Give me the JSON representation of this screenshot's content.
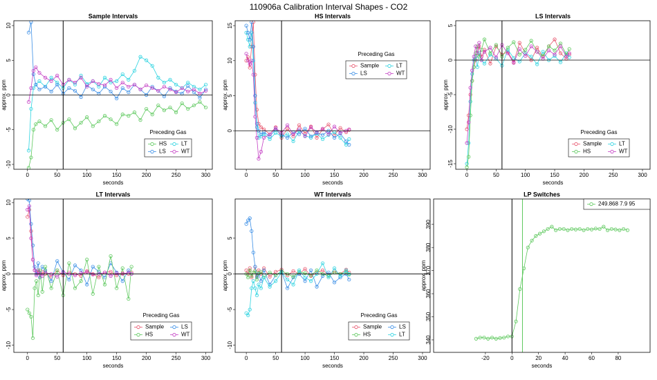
{
  "title": "110906a   Calibration Interval Shapes - CO2",
  "chart_data": [
    {
      "type": "line",
      "title": "Sample Intervals",
      "xlabel": "seconds",
      "ylabel": "approx. ppm",
      "x": [
        2,
        6,
        10,
        14,
        20,
        30,
        40,
        50,
        60,
        70,
        80,
        90,
        100,
        110,
        120,
        130,
        140,
        150,
        160,
        170,
        180,
        190,
        200,
        210,
        220,
        230,
        240,
        250,
        260,
        270,
        280,
        290,
        300
      ],
      "series": [
        {
          "name": "HS",
          "color": "#5CC85C",
          "values": [
            -10.5,
            -9,
            -5,
            -4.2,
            -3.8,
            -4.5,
            -3.6,
            -5,
            -4,
            -3.5,
            -4.8,
            -4,
            -3.2,
            -4.5,
            -3.8,
            -3,
            -3.5,
            -4.2,
            -2.8,
            -3,
            -2.5,
            -3.6,
            -2,
            -2.8,
            -1.5,
            -2.2,
            -1.8,
            -2.5,
            -1.2,
            -2,
            -1.5,
            -1,
            -1.8
          ]
        },
        {
          "name": "LT",
          "color": "#2CD3E0",
          "values": [
            -8,
            -2,
            1,
            1.5,
            2,
            1.2,
            2.5,
            1.8,
            1,
            2.2,
            1.5,
            2.8,
            1.6,
            2,
            1.2,
            2.5,
            1.8,
            2,
            3,
            2.2,
            3.5,
            5.5,
            5,
            4.2,
            2.5,
            1.8,
            2.2,
            1.5,
            1,
            1.8,
            1.2,
            0.8,
            1.5
          ]
        },
        {
          "name": "LS",
          "color": "#3A8EE6",
          "values": [
            9,
            10.5,
            3,
            1.5,
            0.8,
            1.2,
            0.5,
            1.5,
            0.2,
            1,
            0.6,
            -0.3,
            1.4,
            0.8,
            0.2,
            1.2,
            0.5,
            -0.5,
            1,
            0.4,
            1.5,
            0.8,
            0,
            1.2,
            0.6,
            -0.2,
            1,
            0.5,
            0.2,
            1.3,
            0.4,
            -0.4,
            0.8
          ]
        },
        {
          "name": "WT",
          "color": "#C43FC4",
          "values": [
            -1,
            1,
            3.5,
            4,
            3.2,
            2.5,
            2,
            2.8,
            1.5,
            2.2,
            1.8,
            2.5,
            1.2,
            2,
            1.6,
            1.4,
            2.2,
            1,
            1.8,
            1.2,
            1.5,
            0.8,
            1.4,
            1,
            0.6,
            1.2,
            0.8,
            0.4,
            1,
            0.5,
            0.8,
            0.2,
            0.6
          ]
        }
      ],
      "xlim": [
        -23,
        311
      ],
      "xticks": [
        0,
        50,
        100,
        150,
        200,
        250,
        300
      ],
      "ylim": [
        -10.7,
        10.7
      ],
      "yticks": [
        -10,
        -5,
        0,
        5,
        10
      ],
      "vlines": [
        {
          "value": 60,
          "color": "#000000"
        }
      ],
      "hlines": [
        0
      ],
      "legend_title": "Preceding Gas",
      "legend": "bottomright"
    },
    {
      "type": "line",
      "title": "HS Intervals",
      "xlabel": "seconds",
      "ylabel": "approx. ppm",
      "x": [
        0,
        3,
        6,
        9,
        12,
        15,
        18,
        21,
        25,
        30,
        40,
        50,
        60,
        70,
        80,
        90,
        100,
        110,
        120,
        130,
        140,
        150,
        160,
        170,
        175
      ],
      "series": [
        {
          "name": "Sample",
          "color": "#E7546C",
          "values": [
            10,
            10.5,
            9,
            12,
            15.5,
            8,
            3,
            1,
            0.5,
            0.2,
            -0.5,
            0.5,
            -1,
            0.3,
            -0.8,
            0.8,
            -0.4,
            0.6,
            -1,
            0.2,
            0.9,
            -0.6,
            0.4,
            -0.2,
            0.1
          ]
        },
        {
          "name": "LT",
          "color": "#2CD3E0",
          "values": [
            14,
            13,
            12,
            14,
            10,
            4,
            0.5,
            -1,
            -0.8,
            -0.5,
            -1.2,
            -0.3,
            -0.8,
            -0.5,
            -1.5,
            0,
            -0.7,
            -1,
            -0.4,
            -1.2,
            -0.6,
            -0.2,
            -1,
            -2,
            -1.2
          ]
        },
        {
          "name": "LS",
          "color": "#3A8EE6",
          "values": [
            15,
            14,
            13,
            15.5,
            12,
            5,
            1,
            0,
            -0.5,
            -0.2,
            -0.8,
            0.2,
            -0.6,
            -1,
            -0.2,
            -0.5,
            0.3,
            -0.8,
            -0.3,
            -0.6,
            0,
            -1,
            -0.4,
            -1.5,
            -2
          ]
        },
        {
          "name": "WT",
          "color": "#C43FC4",
          "values": [
            11,
            10,
            9.5,
            10,
            8,
            2,
            -1,
            -4,
            -3,
            -1,
            -0.5,
            0.4,
            -0.3,
            0.8,
            -0.5,
            0.2,
            -0.8,
            0.5,
            -0.2,
            0.3,
            -0.5,
            0.6,
            -0.3,
            0,
            0.2
          ]
        }
      ],
      "xlim": [
        -19,
        313
      ],
      "xticks": [
        0,
        50,
        100,
        150,
        200,
        250,
        300
      ],
      "ylim": [
        -5.5,
        15.7
      ],
      "yticks": [
        0,
        5,
        10,
        15
      ],
      "vlines": [
        {
          "value": 60,
          "color": "#000000"
        }
      ],
      "hlines": [
        0
      ],
      "legend_title": "Preceding Gas",
      "legend": "topright"
    },
    {
      "type": "line",
      "title": "LS Intervals",
      "xlabel": "seconds",
      "ylabel": "approx. ppm",
      "x": [
        0,
        3,
        6,
        9,
        12,
        15,
        18,
        21,
        25,
        30,
        40,
        50,
        60,
        70,
        80,
        90,
        100,
        110,
        120,
        130,
        140,
        150,
        160,
        170,
        175
      ],
      "series": [
        {
          "name": "Sample",
          "color": "#E7546C",
          "values": [
            -10,
            -8,
            -5,
            -3,
            -1,
            0,
            1,
            2,
            0.5,
            1.5,
            -0.5,
            2,
            0.8,
            1.2,
            -0.3,
            2.5,
            1,
            0,
            1.8,
            0.5,
            2,
            3,
            1,
            0.2,
            0.8
          ]
        },
        {
          "name": "LT",
          "color": "#2CD3E0",
          "values": [
            -15,
            -12,
            -6,
            -2,
            0,
            0.5,
            -1,
            1,
            0,
            -0.5,
            0.8,
            0.2,
            -0.8,
            1.5,
            0.3,
            -0.2,
            1,
            0.5,
            -0.6,
            1.2,
            0,
            0.6,
            -0.3,
            1,
            0.4
          ]
        },
        {
          "name": "HS",
          "color": "#5CC85C",
          "values": [
            -15.5,
            -14,
            -8,
            -3,
            -1,
            1,
            2,
            0.5,
            1.5,
            3,
            1,
            2.2,
            0.5,
            1.8,
            2.6,
            0.8,
            1.5,
            2.8,
            1.2,
            0.6,
            2,
            1.4,
            2.4,
            0.8,
            1.6
          ]
        },
        {
          "name": "WT",
          "color": "#C43FC4",
          "values": [
            -12,
            -9,
            -4,
            -1.5,
            0.5,
            2,
            1,
            2.5,
            0,
            1.2,
            1.8,
            0.4,
            2.2,
            1,
            -0.4,
            1.6,
            0.6,
            2,
            1.2,
            0.2,
            1.4,
            0.8,
            2,
            0.5,
            1
          ]
        }
      ],
      "xlim": [
        -19,
        313
      ],
      "xticks": [
        0,
        50,
        100,
        150,
        200,
        250,
        300
      ],
      "ylim": [
        -15.8,
        5.7
      ],
      "yticks": [
        -15,
        -10,
        -5,
        0,
        5
      ],
      "vlines": [
        {
          "value": 60,
          "color": "#000000"
        }
      ],
      "hlines": [
        0
      ],
      "legend_title": "Preceding Gas",
      "legend": "bottomright"
    },
    {
      "type": "line",
      "title": "LT Intervals",
      "xlabel": "seconds",
      "ylabel": "approx. ppm",
      "x": [
        0,
        3,
        6,
        9,
        12,
        15,
        18,
        21,
        25,
        30,
        40,
        50,
        60,
        70,
        80,
        90,
        100,
        110,
        120,
        130,
        140,
        150,
        160,
        170,
        175
      ],
      "series": [
        {
          "name": "Sample",
          "color": "#E7546C",
          "values": [
            8,
            9,
            6,
            2,
            0.5,
            0,
            0.5,
            -0.5,
            0.3,
            0,
            -0.4,
            0.5,
            -0.2,
            0.2,
            0,
            -0.3,
            0.4,
            0,
            -0.5,
            0.2,
            0.3,
            -0.2,
            0.1,
            0,
            0.2
          ]
        },
        {
          "name": "LS",
          "color": "#3A8EE6",
          "values": [
            10.5,
            10.3,
            7,
            4,
            1,
            0,
            1.5,
            -0.5,
            1,
            0.5,
            -1,
            1.8,
            0.2,
            -0.8,
            1.2,
            0.5,
            -1.5,
            1,
            0.3,
            -0.5,
            1.5,
            0.2,
            -1,
            0.5,
            0
          ]
        },
        {
          "name": "HS",
          "color": "#5CC85C",
          "values": [
            -5,
            -5.5,
            -6,
            -9,
            -2,
            -1,
            -3,
            0.5,
            -2.5,
            1,
            -2,
            0.5,
            -3,
            1.5,
            -2,
            -1,
            2,
            -2.8,
            1,
            -1.5,
            2.5,
            -2,
            0.8,
            -3.5,
            1
          ]
        },
        {
          "name": "WT",
          "color": "#C43FC4",
          "values": [
            9,
            9.5,
            5,
            2,
            0.5,
            -0.2,
            0.3,
            0,
            -0.3,
            0.2,
            0,
            -0.4,
            0.3,
            0,
            -0.2,
            0.1,
            0.3,
            -0.1,
            0,
            0.2,
            -0.3,
            0.1,
            0,
            0.2,
            0
          ]
        }
      ],
      "xlim": [
        -23,
        311
      ],
      "xticks": [
        0,
        50,
        100,
        150,
        200,
        250,
        300
      ],
      "ylim": [
        -11,
        10.5
      ],
      "yticks": [
        -10,
        -5,
        0,
        5,
        10
      ],
      "vlines": [
        {
          "value": 60,
          "color": "#000000"
        }
      ],
      "hlines": [
        0
      ],
      "legend_title": "Preceding Gas",
      "legend": "bottomright"
    },
    {
      "type": "line",
      "title": "WT Intervals",
      "xlabel": "seconds",
      "ylabel": "approx. ppm",
      "x": [
        0,
        3,
        6,
        9,
        12,
        15,
        18,
        21,
        25,
        30,
        40,
        50,
        60,
        70,
        80,
        90,
        100,
        110,
        120,
        130,
        140,
        150,
        160,
        170,
        175
      ],
      "series": [
        {
          "name": "Sample",
          "color": "#E7546C",
          "values": [
            0.5,
            0,
            0.8,
            -0.5,
            0.2,
            1,
            -0.3,
            0.5,
            0,
            0.8,
            -0.4,
            0.3,
            0.6,
            -0.2,
            0.4,
            0,
            0.7,
            -0.3,
            0.2,
            0.5,
            -0.1,
            0.4,
            0,
            0.6,
            0.2
          ]
        },
        {
          "name": "LS",
          "color": "#3A8EE6",
          "values": [
            7,
            7.5,
            7.8,
            6,
            3,
            1,
            -0.5,
            0,
            -1,
            0.5,
            -1.5,
            -0.2,
            0.3,
            -2,
            -0.5,
            0,
            -1,
            0.5,
            -1.8,
            -0.3,
            0.2,
            -1.2,
            -0.5,
            0,
            -0.8
          ]
        },
        {
          "name": "HS",
          "color": "#5CC85C",
          "values": [
            0,
            -0.5,
            0.5,
            -0.3,
            0.2,
            0.4,
            -0.8,
            0.1,
            0.3,
            -0.5,
            0.2,
            -0.2,
            0.4,
            0,
            -0.4,
            0.3,
            0.1,
            -0.2,
            0.5,
            0,
            -0.3,
            0.2,
            0,
            0.3,
            -0.1
          ]
        },
        {
          "name": "LT",
          "color": "#2CD3E0",
          "values": [
            -5.5,
            -5.8,
            -5,
            -2,
            -1,
            -2,
            -3,
            -1.5,
            -2,
            -0.5,
            -1.8,
            -1,
            0.2,
            -0.8,
            -1.5,
            0.5,
            -0.5,
            -1,
            0,
            1.5,
            -0.5,
            0.8,
            -0.3,
            0.5,
            0
          ]
        }
      ],
      "xlim": [
        -19,
        313
      ],
      "xticks": [
        0,
        50,
        100,
        150,
        200,
        250,
        300
      ],
      "ylim": [
        -11,
        10.5
      ],
      "yticks": [
        -10,
        -5,
        0,
        5
      ],
      "vlines": [
        {
          "value": 60,
          "color": "#000000"
        }
      ],
      "hlines": [
        0
      ],
      "legend_title": "Preceding Gas",
      "legend": "bottomright"
    },
    {
      "type": "line",
      "title": "LP Switches",
      "xlabel": "seconds",
      "ylabel": "approx. ppm",
      "x": [
        -27,
        -24,
        -21,
        -18,
        -15,
        -12,
        -9,
        -6,
        -3,
        0,
        3,
        6,
        9,
        12,
        15,
        18,
        21,
        24,
        27,
        30,
        33,
        36,
        39,
        42,
        45,
        48,
        51,
        54,
        57,
        60,
        63,
        66,
        69,
        72,
        75,
        78,
        81,
        84,
        87
      ],
      "series": [
        {
          "name": "249.868 7.9 95",
          "color": "#5CC85C",
          "values": [
            340.5,
            341,
            341,
            340.5,
            341,
            340.5,
            340.8,
            341,
            341.5,
            341.5,
            348,
            362,
            371,
            380,
            383,
            385,
            386,
            387,
            388,
            389,
            387.5,
            388,
            388,
            387.5,
            388,
            387.8,
            388,
            387.5,
            388,
            387.8,
            388.2,
            388,
            389,
            387.5,
            388,
            387.8,
            387.5,
            388,
            387.5
          ]
        }
      ],
      "xlim": [
        -59,
        104
      ],
      "xticks": [
        -20,
        0,
        20,
        40,
        60,
        80
      ],
      "ylim": [
        334.6,
        401
      ],
      "yticks": [
        340,
        350,
        360,
        370,
        380,
        390
      ],
      "vlines": [
        {
          "value": 0,
          "color": "#000000"
        },
        {
          "value": 7.9,
          "color": "#5CC85C"
        }
      ],
      "hlines": [],
      "legend": "topright"
    }
  ]
}
